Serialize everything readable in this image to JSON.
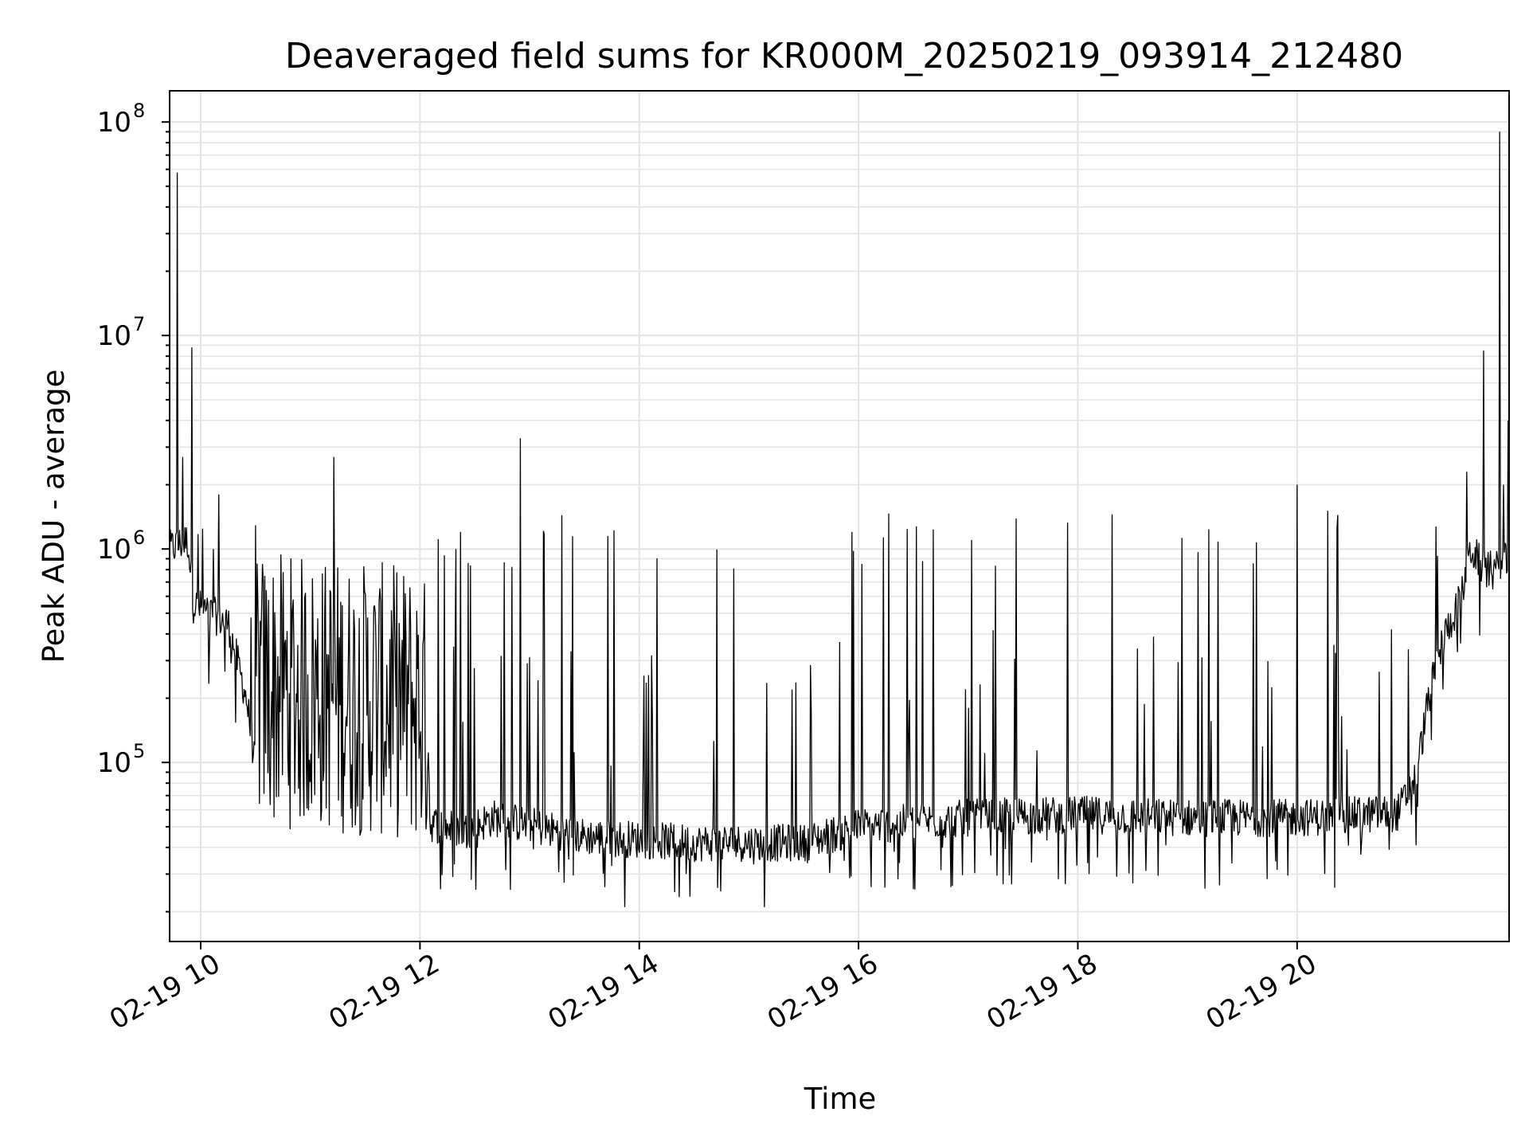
{
  "chart_data": {
    "type": "line",
    "title": "Deaveraged field sums for KR000M_20250219_093914_212480",
    "xlabel": "Time",
    "ylabel": "Peak ADU - average",
    "xlim": [
      "2025-02-19 09:43",
      "2025-02-19 21:56"
    ],
    "ylim": [
      14500,
      140000000
    ],
    "yscale": "log",
    "grid": true,
    "x_ticks": [
      {
        "t": "2025-02-19 10:00",
        "label": "02-19 10"
      },
      {
        "t": "2025-02-19 12:00",
        "label": "02-19 12"
      },
      {
        "t": "2025-02-19 14:00",
        "label": "02-19 14"
      },
      {
        "t": "2025-02-19 16:00",
        "label": "02-19 16"
      },
      {
        "t": "2025-02-19 18:00",
        "label": "02-19 18"
      },
      {
        "t": "2025-02-19 20:00",
        "label": "02-19 20"
      }
    ],
    "y_ticks": [
      {
        "value": 100000,
        "base": "10",
        "exp": "5"
      },
      {
        "value": 1000000,
        "base": "10",
        "exp": "6"
      },
      {
        "value": 10000000,
        "base": "10",
        "exp": "7"
      },
      {
        "value": 100000000,
        "base": "10",
        "exp": "8"
      }
    ],
    "series": [
      {
        "color": "#000000",
        "baseline_profile": [
          {
            "t": "2025-02-19 09:43",
            "value": 1000000
          },
          {
            "t": "2025-02-19 09:53",
            "value": 1100000
          },
          {
            "t": "2025-02-19 09:56",
            "value": 550000
          },
          {
            "t": "2025-02-19 10:15",
            "value": 450000
          },
          {
            "t": "2025-02-19 10:25",
            "value": 200000
          },
          {
            "t": "2025-02-19 10:32",
            "value": 70000
          },
          {
            "t": "2025-02-19 11:55",
            "value": 60000
          },
          {
            "t": "2025-02-19 12:05",
            "value": 52000
          },
          {
            "t": "2025-02-19 12:25",
            "value": 48000
          },
          {
            "t": "2025-02-19 12:40",
            "value": 55000
          },
          {
            "t": "2025-02-19 13:30",
            "value": 45000
          },
          {
            "t": "2025-02-19 14:30",
            "value": 42000
          },
          {
            "t": "2025-02-19 15:30",
            "value": 42000
          },
          {
            "t": "2025-02-19 16:00",
            "value": 50000
          },
          {
            "t": "2025-02-19 17:00",
            "value": 55000
          },
          {
            "t": "2025-02-19 18:00",
            "value": 57000
          },
          {
            "t": "2025-02-19 19:00",
            "value": 55000
          },
          {
            "t": "2025-02-19 20:00",
            "value": 55000
          },
          {
            "t": "2025-02-19 20:55",
            "value": 58000
          },
          {
            "t": "2025-02-19 21:05",
            "value": 85000
          },
          {
            "t": "2025-02-19 21:12",
            "value": 200000
          },
          {
            "t": "2025-02-19 21:20",
            "value": 380000
          },
          {
            "t": "2025-02-19 21:30",
            "value": 600000
          },
          {
            "t": "2025-02-19 21:35",
            "value": 1000000
          },
          {
            "t": "2025-02-19 21:45",
            "value": 750000
          },
          {
            "t": "2025-02-19 21:56",
            "value": 900000
          }
        ],
        "spikes": [
          {
            "t": "2025-02-19 09:47",
            "value": 58000000
          },
          {
            "t": "2025-02-19 09:55",
            "value": 8800000
          },
          {
            "t": "2025-02-19 09:50",
            "value": 2700000
          },
          {
            "t": "2025-02-19 10:10",
            "value": 1800000
          },
          {
            "t": "2025-02-19 11:13",
            "value": 2700000
          },
          {
            "t": "2025-02-19 12:55",
            "value": 3300000
          },
          {
            "t": "2025-02-19 20:00",
            "value": 2000000
          },
          {
            "t": "2025-02-19 21:33",
            "value": 2300000
          },
          {
            "t": "2025-02-19 21:42",
            "value": 8500000
          },
          {
            "t": "2025-02-19 21:51",
            "value": 90000000
          },
          {
            "t": "2025-02-19 21:53",
            "value": 2000000
          }
        ],
        "burst_range": [
          800000,
          1600000
        ],
        "dip_min": 21000
      }
    ]
  }
}
